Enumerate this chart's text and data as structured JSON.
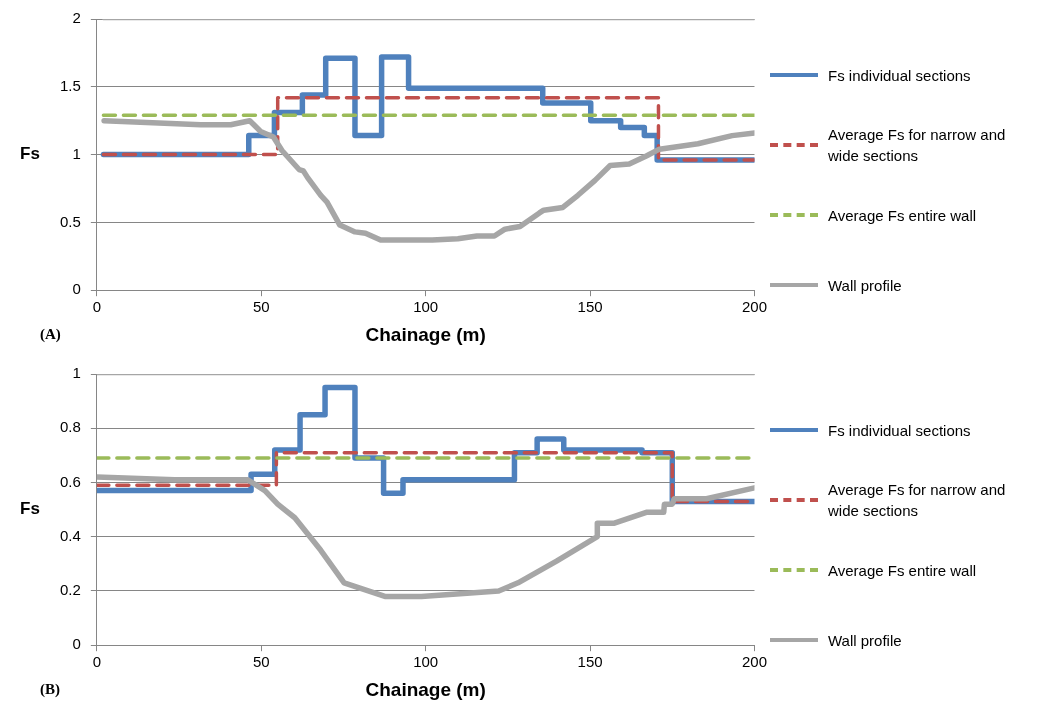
{
  "chart_data": [
    {
      "type": "line",
      "xlabel": "Chainage (m)",
      "ylabel": "Fs",
      "annotations": [
        "(A)"
      ],
      "xlim": [
        0,
        200
      ],
      "xticks": [
        0,
        50,
        100,
        150,
        200
      ],
      "ylim": [
        0,
        2
      ],
      "yticks": [
        0,
        0.5,
        1,
        1.5,
        2
      ],
      "grid": "y",
      "legend": "right",
      "marker": "none",
      "series": [
        {
          "name": "Fs individual sections",
          "type": "step",
          "color": "#4f81bd",
          "line_style": "solid",
          "x": [
            2,
            46.2,
            54,
            62.5,
            69.6,
            78.5,
            86.6,
            94.8,
            135.6,
            150.2,
            159.3,
            166.5,
            170.4,
            200
          ],
          "values": [
            1.0,
            1.14,
            1.31,
            1.44,
            1.71,
            1.14,
            1.72,
            1.49,
            1.38,
            1.25,
            1.2,
            1.14,
            0.96,
            0.96
          ]
        },
        {
          "name": "Average Fs for narrow and wide sections",
          "type": "step",
          "color": "#c0504d",
          "line_style": "dashed",
          "x": [
            2,
            55,
            170.8,
            200
          ],
          "values": [
            1.0,
            1.42,
            0.96,
            0.96
          ]
        },
        {
          "name": "Average Fs entire wall",
          "type": "line",
          "color": "#9bbb59",
          "line_style": "dashed",
          "x": [
            2,
            200
          ],
          "values": [
            1.29,
            1.29
          ]
        },
        {
          "name": "Wall profile",
          "type": "line",
          "color": "#a6a6a6",
          "line_style": "solid",
          "x": [
            2.2,
            31.6,
            40.7,
            46.5,
            49.8,
            53.7,
            56.3,
            61.5,
            62.8,
            64.1,
            68.1,
            70.0,
            73.9,
            78.5,
            81.7,
            86.3,
            102,
            109.8,
            115.6,
            120.9,
            124.1,
            128.7,
            134.6,
            135.9,
            141.7,
            146.3,
            151.5,
            156.1,
            161.9,
            164.5,
            167.1,
            171.1,
            182.8,
            193.2,
            200
          ],
          "values": [
            1.25,
            1.22,
            1.22,
            1.25,
            1.17,
            1.13,
            1.03,
            0.89,
            0.88,
            0.83,
            0.7,
            0.65,
            0.48,
            0.43,
            0.42,
            0.37,
            0.37,
            0.38,
            0.4,
            0.4,
            0.45,
            0.47,
            0.57,
            0.59,
            0.61,
            0.7,
            0.81,
            0.92,
            0.93,
            0.96,
            0.99,
            1.04,
            1.08,
            1.14,
            1.16
          ]
        },
        {
          "type": "line",
          "color": "#a6a6a6",
          "line_style": "solid",
          "x": [
            2,
            200
          ],
          "values": [
            2,
            2
          ]
        }
      ]
    },
    {
      "type": "line",
      "xlabel": "Chainage (m)",
      "ylabel": "Fs",
      "annotations": [
        "(B)"
      ],
      "xlim": [
        0,
        200
      ],
      "xticks": [
        0,
        50,
        100,
        150,
        200
      ],
      "ylim": [
        0,
        1
      ],
      "yticks": [
        0,
        0.2,
        0.4,
        0.6,
        0.8,
        1
      ],
      "grid": "y",
      "legend": "right",
      "marker": "none",
      "series": [
        {
          "name": "Fs individual sections",
          "type": "step",
          "color": "#4f81bd",
          "line_style": "solid",
          "x": [
            0,
            46.9,
            54.1,
            61.8,
            69.4,
            78.5,
            87.2,
            93.1,
            127,
            133.9,
            142,
            165.8,
            175,
            200
          ],
          "values": [
            0.57,
            0.63,
            0.72,
            0.85,
            0.95,
            0.69,
            0.56,
            0.61,
            0.71,
            0.76,
            0.72,
            0.71,
            0.53,
            0.53
          ]
        },
        {
          "name": "Average Fs for narrow and wide sections",
          "type": "step",
          "color": "#c0504d",
          "line_style": "dashed",
          "x": [
            0,
            54.6,
            175,
            200
          ],
          "values": [
            0.59,
            0.71,
            0.53,
            0.53
          ]
        },
        {
          "name": "Average Fs entire wall",
          "type": "line",
          "color": "#9bbb59",
          "line_style": "dashed",
          "x": [
            0,
            200
          ],
          "values": [
            0.69,
            0.69
          ]
        },
        {
          "name": "Wall profile",
          "type": "line",
          "color": "#a6a6a6",
          "line_style": "solid",
          "x": [
            0,
            23.7,
            45.9,
            51.1,
            55,
            60.2,
            68.1,
            75.2,
            87.6,
            98.7,
            122.2,
            128.1,
            139.8,
            152.2,
            152.2,
            157.4,
            167.1,
            172.4,
            172.6,
            175,
            175.6,
            185.4,
            200
          ],
          "values": [
            0.62,
            0.61,
            0.61,
            0.57,
            0.52,
            0.47,
            0.35,
            0.23,
            0.18,
            0.18,
            0.2,
            0.23,
            0.31,
            0.4,
            0.45,
            0.45,
            0.49,
            0.49,
            0.52,
            0.52,
            0.54,
            0.54,
            0.58
          ]
        },
        {
          "type": "line",
          "color": "#a6a6a6",
          "line_style": "solid",
          "x": [
            0,
            200
          ],
          "values": [
            1,
            1
          ]
        }
      ]
    }
  ]
}
